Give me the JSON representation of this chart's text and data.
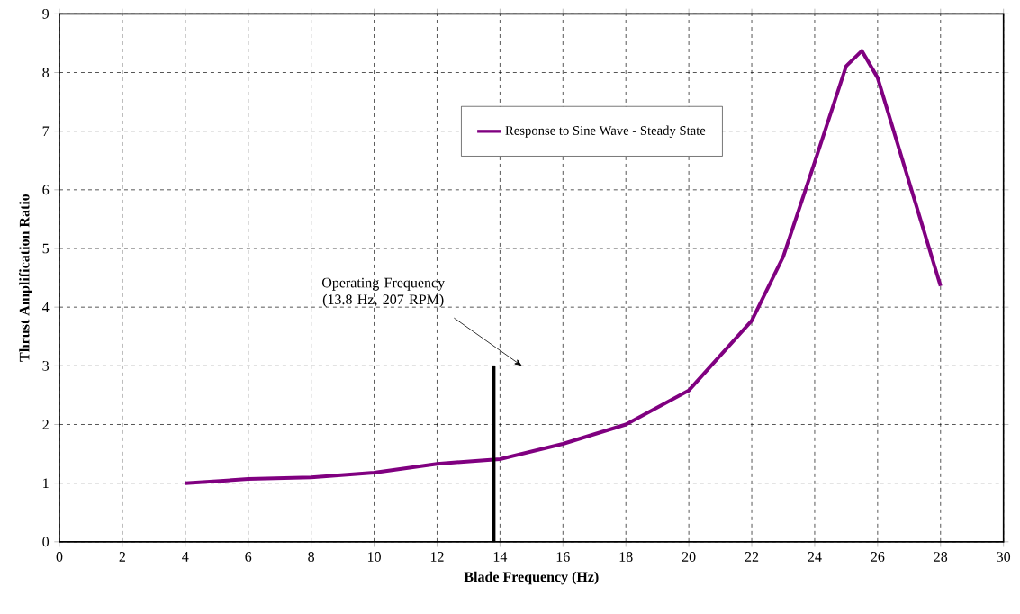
{
  "chart_data": {
    "type": "line",
    "xlabel": "Blade Frequency (Hz)",
    "ylabel": "Thrust Amplification Ratio",
    "series": [
      {
        "name": "Response to Sine Wave - Steady State",
        "color": "#800080",
        "x": [
          4,
          6,
          8,
          10,
          12,
          14,
          16,
          18,
          20,
          22,
          23,
          24,
          25,
          25.5,
          26,
          28
        ],
        "values": [
          1.0,
          1.07,
          1.1,
          1.18,
          1.33,
          1.41,
          1.67,
          2.0,
          2.58,
          3.77,
          4.86,
          6.47,
          8.11,
          8.37,
          7.91,
          4.36
        ]
      },
      {
        "color": "#000000",
        "x": [
          13.8,
          13.8
        ],
        "values": [
          0,
          3
        ]
      }
    ],
    "annotations": [
      "Operating Frequency (13.8 Hz, 207 RPM)"
    ],
    "xlim": [
      0,
      30
    ],
    "ylim": [
      0,
      9
    ],
    "xticks": [
      0,
      2,
      4,
      6,
      8,
      10,
      12,
      14,
      16,
      18,
      20,
      22,
      24,
      26,
      28,
      30
    ],
    "yticks": [
      0,
      1,
      2,
      3,
      4,
      5,
      6,
      7,
      8,
      9
    ],
    "grid": true,
    "legend": "top",
    "marker": "none",
    "line_style": "solid"
  }
}
